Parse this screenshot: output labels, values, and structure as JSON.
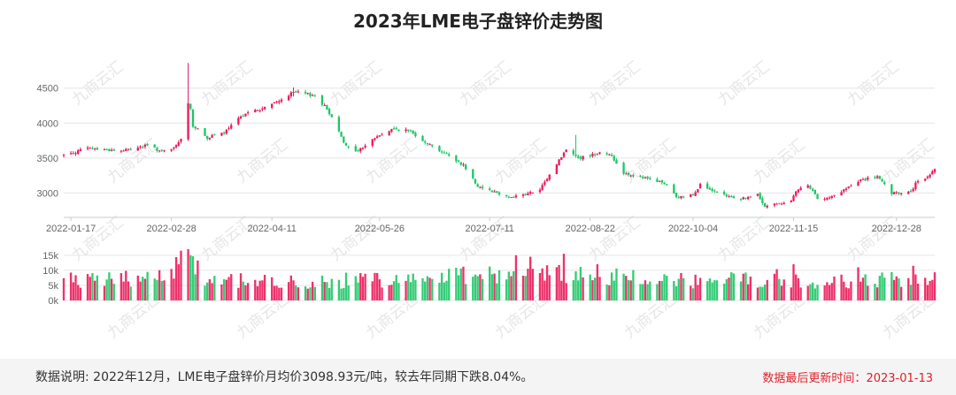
{
  "title": "2023年LME电子盘锌价走势图",
  "watermark": "九商云汇",
  "footer": {
    "note": "数据说明: 2022年12月，LME电子盘锌价月均价3098.93元/吨，较去年同期下跌8.04%。",
    "update_label": "数据最后更新时间：",
    "update_date": "2023-01-13"
  },
  "colors": {
    "up": "#ec1b5a",
    "down": "#1ec766",
    "grid": "#e6e6e6"
  },
  "chart_data": [
    {
      "type": "candlestick",
      "ylim": [
        2650,
        4800
      ],
      "yticks": [
        3000,
        3500,
        4000,
        4500
      ],
      "xtick_labels": [
        "2022-01-17",
        "2022-02-28",
        "2022-04-11",
        "2022-05-26",
        "2022-07-11",
        "2022-08-22",
        "2022-10-04",
        "2022-11-15",
        "2022-12-28"
      ],
      "x_range": [
        "2022-01-14",
        "2023-01-13"
      ],
      "grid": "horizontal",
      "close_anchors": [
        [
          "2022-01-14",
          3540
        ],
        [
          "2022-01-24",
          3640
        ],
        [
          "2022-02-07",
          3600
        ],
        [
          "2022-02-18",
          3680
        ],
        [
          "2022-02-24",
          3590
        ],
        [
          "2022-02-28",
          3610
        ],
        [
          "2022-03-04",
          3760
        ],
        [
          "2022-03-07",
          4300
        ],
        [
          "2022-03-08",
          4200
        ],
        [
          "2022-03-09",
          3960
        ],
        [
          "2022-03-15",
          3790
        ],
        [
          "2022-03-22",
          3860
        ],
        [
          "2022-03-31",
          4150
        ],
        [
          "2022-04-06",
          4190
        ],
        [
          "2022-04-13",
          4300
        ],
        [
          "2022-04-20",
          4440
        ],
        [
          "2022-04-25",
          4420
        ],
        [
          "2022-04-29",
          4390
        ],
        [
          "2022-05-04",
          4200
        ],
        [
          "2022-05-09",
          3900
        ],
        [
          "2022-05-12",
          3660
        ],
        [
          "2022-05-17",
          3600
        ],
        [
          "2022-05-24",
          3790
        ],
        [
          "2022-06-01",
          3920
        ],
        [
          "2022-06-08",
          3880
        ],
        [
          "2022-06-15",
          3710
        ],
        [
          "2022-06-22",
          3570
        ],
        [
          "2022-06-30",
          3400
        ],
        [
          "2022-07-06",
          3100
        ],
        [
          "2022-07-12",
          3030
        ],
        [
          "2022-07-19",
          2940
        ],
        [
          "2022-07-26",
          2980
        ],
        [
          "2022-08-01",
          3040
        ],
        [
          "2022-08-08",
          3420
        ],
        [
          "2022-08-12",
          3620
        ],
        [
          "2022-08-18",
          3500
        ],
        [
          "2022-08-26",
          3580
        ],
        [
          "2022-08-30",
          3560
        ],
        [
          "2022-09-05",
          3290
        ],
        [
          "2022-09-12",
          3220
        ],
        [
          "2022-09-19",
          3170
        ],
        [
          "2022-09-23",
          3120
        ],
        [
          "2022-09-27",
          2930
        ],
        [
          "2022-10-04",
          2980
        ],
        [
          "2022-10-07",
          3120
        ],
        [
          "2022-10-12",
          3020
        ],
        [
          "2022-10-18",
          2950
        ],
        [
          "2022-10-24",
          2920
        ],
        [
          "2022-10-31",
          2970
        ],
        [
          "2022-11-03",
          2800
        ],
        [
          "2022-11-10",
          2860
        ],
        [
          "2022-11-14",
          2900
        ],
        [
          "2022-11-17",
          3050
        ],
        [
          "2022-11-21",
          3100
        ],
        [
          "2022-11-25",
          2930
        ],
        [
          "2022-12-01",
          2940
        ],
        [
          "2022-12-06",
          3040
        ],
        [
          "2022-12-13",
          3180
        ],
        [
          "2022-12-20",
          3230
        ],
        [
          "2022-12-26",
          2990
        ],
        [
          "2023-01-03",
          3010
        ],
        [
          "2023-01-05",
          3130
        ],
        [
          "2023-01-10",
          3230
        ],
        [
          "2023-01-13",
          3340
        ]
      ],
      "spikes": [
        [
          "2022-03-07",
          4860,
          3780
        ],
        [
          "2022-08-16",
          3830,
          3530
        ],
        [
          "2022-04-20",
          4510,
          4380
        ]
      ]
    },
    {
      "type": "bar",
      "ylim": [
        0,
        17000
      ],
      "yticks": [
        0,
        5000,
        10000,
        15000
      ],
      "ytick_labels": [
        "0k",
        "5k",
        "10k",
        "15k"
      ],
      "volume_anchors": [
        [
          "2022-01-14",
          6500
        ],
        [
          "2022-02-20",
          8000
        ],
        [
          "2022-03-01",
          11000
        ],
        [
          "2022-03-07",
          16000
        ],
        [
          "2022-03-15",
          7000
        ],
        [
          "2022-04-20",
          6000
        ],
        [
          "2022-06-15",
          7500
        ],
        [
          "2022-07-05",
          9500
        ],
        [
          "2022-07-25",
          8000
        ],
        [
          "2022-08-10",
          9000
        ],
        [
          "2022-08-22",
          8500
        ],
        [
          "2022-09-15",
          6800
        ],
        [
          "2022-10-15",
          6500
        ],
        [
          "2022-11-10",
          7500
        ],
        [
          "2022-11-25",
          6000
        ],
        [
          "2022-12-20",
          6800
        ],
        [
          "2023-01-13",
          7800
        ]
      ],
      "volume_peaks": [
        [
          "2022-03-04",
          16500
        ],
        [
          "2022-03-08",
          15000
        ],
        [
          "2022-07-22",
          15000
        ],
        [
          "2022-07-28",
          14500
        ],
        [
          "2022-08-11",
          15500
        ],
        [
          "2022-08-25",
          12000
        ],
        [
          "2022-11-15",
          12000
        ],
        [
          "2022-12-12",
          11000
        ],
        [
          "2023-01-04",
          11500
        ]
      ]
    }
  ]
}
